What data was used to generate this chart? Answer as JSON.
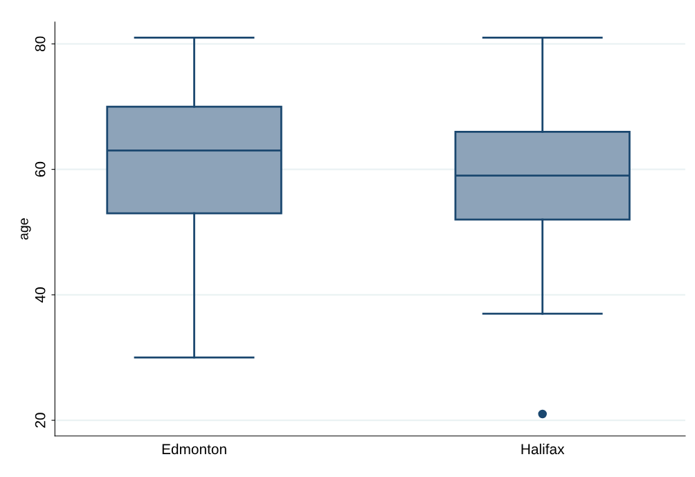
{
  "chart_data": {
    "type": "box",
    "ylabel": "age",
    "categories": [
      "Edmonton",
      "Halifax"
    ],
    "boxes": [
      {
        "low": 30,
        "q1": 53,
        "median": 63,
        "q3": 70,
        "high": 81
      },
      {
        "low": 37,
        "q1": 52,
        "median": 59,
        "q3": 66,
        "high": 81,
        "outliers": [
          21
        ]
      }
    ],
    "color": "#8da3b9",
    "ylim": [
      17.5,
      83.5
    ],
    "yticks": [
      20,
      40,
      60,
      80
    ],
    "grid": "y"
  }
}
